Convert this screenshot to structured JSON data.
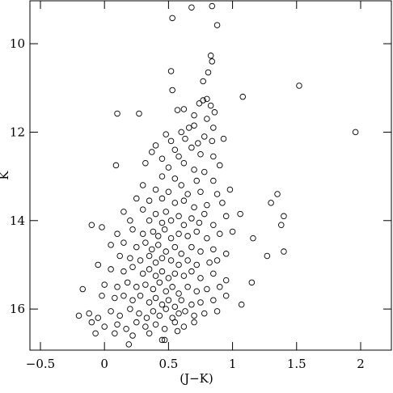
{
  "chart_data": {
    "type": "scatter",
    "x_label": "(J−K)",
    "y_label": "K",
    "xlim": [
      -0.582,
      2.24
    ],
    "ylim": [
      9.03,
      16.93
    ],
    "y_inverted": true,
    "xticks": [
      {
        "value": -0.5,
        "label": "−0.5"
      },
      0,
      0.5,
      1,
      1.5,
      2
    ],
    "yticks": [
      10,
      12,
      14,
      16
    ],
    "marker_color": "#000000",
    "x": [
      0.68,
      0.84,
      0.53,
      0.88,
      0.83,
      0.84,
      0.52,
      0.81,
      0.77,
      1.52,
      0.53,
      1.08,
      0.1,
      0.27,
      1.96,
      0.09,
      1.35,
      1.3,
      1.4,
      1.38,
      1.06,
      1.4,
      1.27,
      1.15,
      1.07,
      1.16,
      -0.1,
      -0.17,
      -0.2,
      -0.07,
      0.19,
      0.47,
      0.57,
      0.62,
      0.7,
      0.74,
      0.77,
      0.8,
      0.83,
      0.86,
      0.7,
      0.66,
      0.8,
      0.85,
      0.6,
      0.48,
      0.52,
      0.63,
      0.73,
      0.78,
      0.84,
      0.93,
      0.4,
      0.55,
      0.68,
      0.75,
      0.37,
      0.45,
      0.58,
      0.85,
      0.32,
      0.5,
      0.62,
      0.7,
      0.78,
      0.9,
      0.45,
      0.55,
      0.6,
      0.72,
      0.85,
      0.3,
      0.4,
      0.5,
      0.65,
      0.75,
      0.88,
      0.98,
      0.25,
      0.35,
      0.45,
      0.55,
      0.62,
      0.7,
      0.8,
      0.92,
      0.15,
      0.3,
      0.4,
      0.48,
      0.58,
      0.68,
      0.78,
      0.95,
      0.2,
      0.35,
      0.45,
      0.52,
      0.62,
      0.74,
      0.85,
      -0.02,
      0.1,
      0.22,
      0.3,
      0.38,
      0.42,
      0.47,
      0.52,
      0.58,
      0.65,
      0.72,
      0.8,
      0.9,
      1.0,
      0.05,
      0.15,
      0.25,
      0.32,
      0.37,
      0.42,
      0.48,
      0.55,
      0.6,
      0.68,
      0.75,
      0.85,
      0.95,
      0.12,
      0.2,
      0.28,
      0.35,
      0.4,
      0.45,
      0.52,
      0.58,
      0.65,
      0.72,
      0.82,
      0.88,
      -0.05,
      0.05,
      0.15,
      0.22,
      0.3,
      0.35,
      0.4,
      0.45,
      0.5,
      0.55,
      0.62,
      0.68,
      0.75,
      0.85,
      0.95,
      0.0,
      0.1,
      0.18,
      0.25,
      0.32,
      0.38,
      0.43,
      0.48,
      0.53,
      0.58,
      0.65,
      0.72,
      0.8,
      0.9,
      -0.02,
      0.08,
      0.15,
      0.22,
      0.28,
      0.35,
      0.4,
      0.45,
      0.5,
      0.55,
      0.6,
      0.68,
      0.75,
      0.85,
      0.95,
      -0.12,
      -0.05,
      0.05,
      0.12,
      0.2,
      0.27,
      0.33,
      0.38,
      0.43,
      0.48,
      0.53,
      0.58,
      0.63,
      0.7,
      0.78,
      0.88,
      -0.1,
      0.0,
      0.1,
      0.17,
      0.25,
      0.32,
      0.4,
      0.47,
      0.55,
      0.62,
      0.7,
      0.08,
      0.22,
      0.35,
      0.45,
      0.57
    ],
    "values": [
      9.18,
      9.15,
      9.42,
      9.58,
      10.27,
      10.4,
      10.62,
      10.65,
      10.85,
      10.95,
      11.05,
      11.2,
      11.58,
      11.58,
      12.0,
      12.75,
      13.4,
      13.6,
      13.9,
      14.1,
      13.85,
      14.7,
      14.8,
      15.4,
      15.9,
      14.4,
      14.1,
      15.55,
      16.15,
      16.55,
      16.8,
      16.7,
      11.5,
      11.48,
      11.62,
      11.35,
      11.28,
      11.25,
      11.4,
      11.55,
      11.85,
      11.9,
      11.7,
      11.9,
      12.0,
      12.05,
      12.2,
      12.15,
      12.25,
      12.1,
      12.2,
      12.15,
      12.3,
      12.4,
      12.35,
      12.5,
      12.45,
      12.6,
      12.55,
      12.55,
      12.7,
      12.8,
      12.7,
      12.85,
      12.9,
      12.75,
      13.0,
      13.05,
      13.2,
      13.1,
      13.1,
      13.2,
      13.3,
      13.35,
      13.4,
      13.35,
      13.4,
      13.3,
      13.5,
      13.55,
      13.5,
      13.6,
      13.55,
      13.7,
      13.65,
      13.6,
      13.8,
      13.75,
      13.85,
      13.8,
      13.9,
      13.95,
      13.85,
      13.9,
      14.0,
      14.0,
      14.05,
      14.0,
      14.1,
      14.05,
      14.1,
      14.15,
      14.3,
      14.2,
      14.3,
      14.25,
      14.35,
      14.2,
      14.4,
      14.3,
      14.35,
      14.25,
      14.4,
      14.3,
      14.25,
      14.55,
      14.5,
      14.6,
      14.5,
      14.65,
      14.55,
      14.7,
      14.6,
      14.75,
      14.6,
      14.7,
      14.65,
      14.75,
      14.8,
      14.85,
      14.9,
      14.8,
      14.95,
      14.85,
      14.9,
      15.0,
      14.9,
      15.0,
      14.95,
      14.9,
      15.0,
      15.1,
      15.15,
      15.05,
      15.2,
      15.1,
      15.25,
      15.15,
      15.3,
      15.2,
      15.25,
      15.15,
      15.3,
      15.2,
      15.35,
      15.45,
      15.5,
      15.4,
      15.5,
      15.45,
      15.55,
      15.4,
      15.6,
      15.5,
      15.65,
      15.5,
      15.6,
      15.55,
      15.5,
      15.7,
      15.75,
      15.7,
      15.8,
      15.7,
      15.85,
      15.75,
      15.9,
      15.8,
      15.95,
      15.8,
      15.9,
      15.85,
      15.8,
      15.7,
      16.1,
      16.2,
      16.05,
      16.15,
      16.0,
      16.1,
      16.2,
      16.05,
      16.15,
      16.0,
      16.2,
      16.1,
      16.05,
      16.15,
      16.1,
      16.05,
      16.3,
      16.4,
      16.35,
      16.45,
      16.3,
      16.4,
      16.35,
      16.45,
      16.3,
      16.4,
      16.3,
      16.55,
      16.6,
      16.55,
      16.7,
      16.5
    ]
  }
}
